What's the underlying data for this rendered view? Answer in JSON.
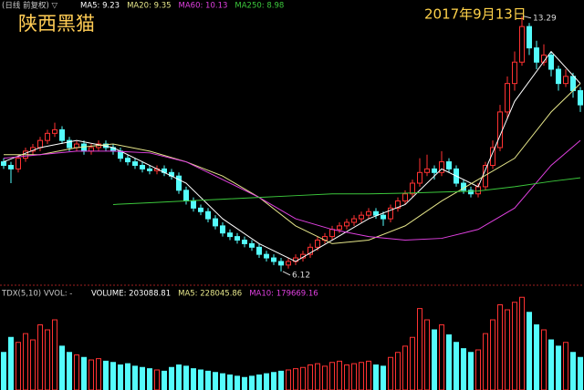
{
  "chart_data": {
    "type": "candlestick",
    "title": "陕西黑猫",
    "date_label": "2017年9月13日",
    "header_prefix": "(日线 前复权) ▽",
    "ylim": [
      5.81,
      13.49
    ],
    "up_color": "#ff3232",
    "down_color": "#54fcfc",
    "candles": {
      "open": [
        9.2,
        9.1,
        9.0,
        9.3,
        9.5,
        9.6,
        9.8,
        10.0,
        10.1,
        9.8,
        9.6,
        9.7,
        9.5,
        9.6,
        9.7,
        9.6,
        9.5,
        9.3,
        9.2,
        9.1,
        9.0,
        8.95,
        9.0,
        8.9,
        8.8,
        8.4,
        8.1,
        7.9,
        7.8,
        7.6,
        7.4,
        7.2,
        7.1,
        7.0,
        6.9,
        6.8,
        6.6,
        6.5,
        6.4,
        6.3,
        6.4,
        6.5,
        6.6,
        6.8,
        7.0,
        7.1,
        7.3,
        7.4,
        7.5,
        7.6,
        7.7,
        7.8,
        7.7,
        7.6,
        7.9,
        8.1,
        8.3,
        8.6,
        8.9,
        9.0,
        8.9,
        9.2,
        9.0,
        8.6,
        8.4,
        8.3,
        8.5,
        9.1,
        9.6,
        10.6,
        11.4,
        12.0,
        13.0,
        12.4,
        12.0,
        12.2,
        11.8,
        11.4,
        11.6,
        11.2
      ],
      "high": [
        9.3,
        9.2,
        9.4,
        9.6,
        9.7,
        9.9,
        10.1,
        10.3,
        10.2,
        9.9,
        9.8,
        9.8,
        9.7,
        9.8,
        9.8,
        9.7,
        9.6,
        9.4,
        9.3,
        9.2,
        9.1,
        9.1,
        9.1,
        9.0,
        8.9,
        8.5,
        8.2,
        8.0,
        7.9,
        7.7,
        7.5,
        7.3,
        7.2,
        7.1,
        7.0,
        6.9,
        6.7,
        6.6,
        6.5,
        6.5,
        6.6,
        6.7,
        6.9,
        7.1,
        7.2,
        7.4,
        7.5,
        7.6,
        7.7,
        7.8,
        7.9,
        7.9,
        7.8,
        8.0,
        8.2,
        8.4,
        8.7,
        9.3,
        9.4,
        9.1,
        9.5,
        9.3,
        9.1,
        8.7,
        8.5,
        8.6,
        9.2,
        9.8,
        10.8,
        11.6,
        12.3,
        13.29,
        13.1,
        12.6,
        12.5,
        12.3,
        11.9,
        11.8,
        11.7,
        11.3
      ],
      "low": [
        9.0,
        8.6,
        8.9,
        9.2,
        9.4,
        9.5,
        9.7,
        9.9,
        9.7,
        9.5,
        9.5,
        9.4,
        9.4,
        9.5,
        9.5,
        9.4,
        9.2,
        9.1,
        9.0,
        8.9,
        8.85,
        8.85,
        8.8,
        8.7,
        8.3,
        8.0,
        7.8,
        7.7,
        7.5,
        7.3,
        7.1,
        7.0,
        6.9,
        6.8,
        6.7,
        6.5,
        6.4,
        6.3,
        6.12,
        6.2,
        6.3,
        6.4,
        6.5,
        6.7,
        6.9,
        7.0,
        7.2,
        7.3,
        7.4,
        7.5,
        7.6,
        7.6,
        7.4,
        7.5,
        7.8,
        8.0,
        8.2,
        8.5,
        8.8,
        8.7,
        8.8,
        8.9,
        8.5,
        8.3,
        8.2,
        8.2,
        8.4,
        9.0,
        9.5,
        10.4,
        11.2,
        11.9,
        12.2,
        11.8,
        11.9,
        11.6,
        11.2,
        11.3,
        11.0,
        10.6
      ],
      "close": [
        9.1,
        9.0,
        9.3,
        9.5,
        9.6,
        9.8,
        10.0,
        10.1,
        9.8,
        9.6,
        9.7,
        9.5,
        9.6,
        9.7,
        9.6,
        9.5,
        9.3,
        9.2,
        9.1,
        9.0,
        8.95,
        9.0,
        8.9,
        8.8,
        8.4,
        8.1,
        7.9,
        7.8,
        7.6,
        7.4,
        7.2,
        7.1,
        7.0,
        6.9,
        6.8,
        6.6,
        6.5,
        6.4,
        6.3,
        6.4,
        6.5,
        6.6,
        6.8,
        7.0,
        7.1,
        7.3,
        7.4,
        7.5,
        7.6,
        7.7,
        7.8,
        7.7,
        7.6,
        7.9,
        8.1,
        8.3,
        8.6,
        8.9,
        9.0,
        8.9,
        9.2,
        9.0,
        8.6,
        8.4,
        8.3,
        8.5,
        9.1,
        9.6,
        10.6,
        11.4,
        12.0,
        13.0,
        12.4,
        12.0,
        12.2,
        11.8,
        11.4,
        11.6,
        11.2,
        10.8
      ]
    },
    "ma_lines": [
      {
        "label": "MA5: 9.23",
        "color": "#ffffff",
        "x": [
          0,
          5,
          10,
          15,
          20,
          25,
          30,
          35,
          40,
          45,
          50,
          55,
          60,
          65,
          70,
          75,
          79
        ],
        "values": [
          9.2,
          9.6,
          9.8,
          9.6,
          9.1,
          8.6,
          7.6,
          6.9,
          6.4,
          7.0,
          7.6,
          8.0,
          9.0,
          8.5,
          10.9,
          12.3,
          11.4
        ]
      },
      {
        "label": "MA20: 9.35",
        "color": "#e6e68a",
        "x": [
          0,
          5,
          10,
          15,
          20,
          25,
          30,
          35,
          40,
          45,
          50,
          55,
          60,
          65,
          70,
          75,
          79
        ],
        "values": [
          9.4,
          9.4,
          9.6,
          9.7,
          9.5,
          9.2,
          8.8,
          8.2,
          7.4,
          6.9,
          7.0,
          7.4,
          8.1,
          8.7,
          9.3,
          10.6,
          11.4
        ]
      },
      {
        "label": "MA60: 10.13",
        "color": "#e040e0",
        "x": [
          0,
          5,
          10,
          15,
          20,
          25,
          30,
          35,
          40,
          45,
          50,
          55,
          60,
          65,
          70,
          75,
          79
        ],
        "values": [
          9.3,
          9.4,
          9.5,
          9.5,
          9.45,
          9.2,
          8.7,
          8.2,
          7.6,
          7.3,
          7.1,
          7.0,
          7.05,
          7.3,
          7.9,
          9.1,
          9.8
        ]
      },
      {
        "label": "MA250: 8.98",
        "color": "#3cc83c",
        "x": [
          15,
          20,
          25,
          30,
          35,
          40,
          45,
          50,
          55,
          60,
          65,
          70,
          75,
          79
        ],
        "values": [
          8.0,
          8.05,
          8.1,
          8.15,
          8.2,
          8.25,
          8.3,
          8.3,
          8.32,
          8.35,
          8.38,
          8.5,
          8.65,
          8.75
        ]
      }
    ],
    "volume": {
      "ylim": [
        0,
        800000
      ],
      "header_prefix": "TDX(5,10) VVOL: -",
      "legend": [
        {
          "label": "VOLUME: 203088.81",
          "color": "#ffffff"
        },
        {
          "label": "MA5: 228045.86",
          "color": "#e6e68a"
        },
        {
          "label": "MA10: 179669.16",
          "color": "#e040e0"
        }
      ],
      "values": [
        300000,
        420000,
        380000,
        450000,
        400000,
        520000,
        480000,
        560000,
        350000,
        300000,
        280000,
        260000,
        240000,
        250000,
        230000,
        220000,
        200000,
        210000,
        190000,
        180000,
        170000,
        160000,
        150000,
        180000,
        200000,
        190000,
        170000,
        160000,
        150000,
        140000,
        130000,
        120000,
        110000,
        100000,
        110000,
        120000,
        130000,
        140000,
        150000,
        160000,
        170000,
        180000,
        200000,
        210000,
        190000,
        220000,
        230000,
        200000,
        210000,
        220000,
        230000,
        200000,
        190000,
        260000,
        300000,
        350000,
        420000,
        650000,
        560000,
        480000,
        520000,
        440000,
        380000,
        330000,
        300000,
        320000,
        450000,
        560000,
        680000,
        640000,
        700000,
        740000,
        620000,
        520000,
        480000,
        400000,
        350000,
        380000,
        300000,
        260000
      ]
    }
  }
}
